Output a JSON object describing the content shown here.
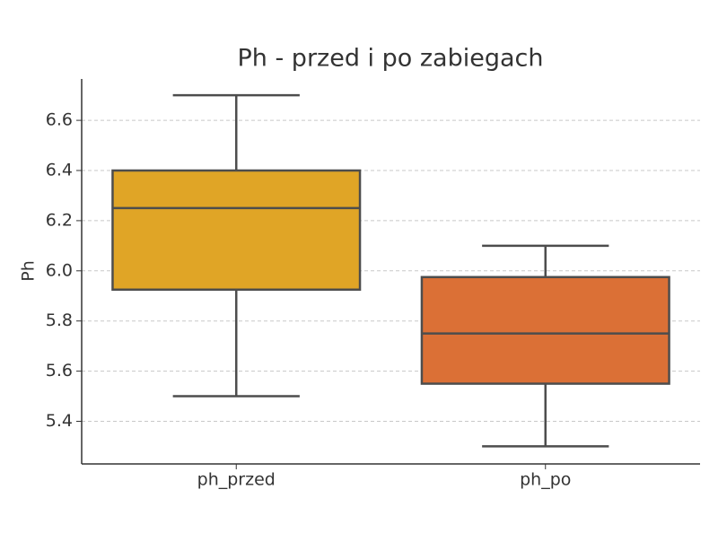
{
  "chart_data": {
    "type": "box",
    "title": "Ph - przed i po zabiegach",
    "ylabel": "Ph",
    "categories": [
      "ph_przed",
      "ph_po"
    ],
    "boxes": [
      {
        "min": 5.5,
        "q1": 5.925,
        "median": 6.25,
        "q3": 6.4,
        "max": 6.7,
        "color": "#e0a526"
      },
      {
        "min": 5.3,
        "q1": 5.55,
        "median": 5.75,
        "q3": 5.975,
        "max": 6.1,
        "color": "#db7036"
      }
    ],
    "ylim": [
      5.23,
      6.765
    ],
    "yticks": [
      {
        "value": 5.4,
        "label": "5.4"
      },
      {
        "value": 5.6,
        "label": "5.6"
      },
      {
        "value": 5.8,
        "label": "5.8"
      },
      {
        "value": 6.0,
        "label": "6.0"
      },
      {
        "value": 6.2,
        "label": "6.2"
      },
      {
        "value": 6.4,
        "label": "6.4"
      },
      {
        "value": 6.6,
        "label": "6.6"
      }
    ],
    "grid": true
  }
}
